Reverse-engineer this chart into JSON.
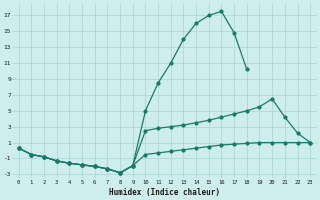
{
  "xlabel": "Humidex (Indice chaleur)",
  "bg_color": "#ceeeed",
  "grid_color": "#aad4d4",
  "line_color": "#1a7a6a",
  "x_values": [
    0,
    1,
    2,
    3,
    4,
    5,
    6,
    7,
    8,
    9,
    10,
    11,
    12,
    13,
    14,
    15,
    16,
    17,
    18,
    19,
    20,
    21,
    22,
    23
  ],
  "line1_y": [
    0.3,
    -0.5,
    -0.8,
    -1.3,
    -1.6,
    -1.8,
    -2.0,
    -2.3,
    -2.8,
    -1.9,
    -0.5,
    -0.3,
    -0.1,
    0.1,
    0.3,
    0.5,
    0.7,
    0.8,
    0.9,
    1.0,
    1.0,
    1.0,
    1.0,
    1.0
  ],
  "line2_x": [
    0,
    1,
    2,
    3,
    4,
    5,
    6,
    7,
    8,
    9,
    10,
    11,
    12,
    13,
    14,
    15,
    16,
    17,
    18
  ],
  "line2_y": [
    0.3,
    -0.5,
    -0.8,
    -1.3,
    -1.6,
    -1.8,
    -2.0,
    -2.3,
    -2.8,
    -1.9,
    5.0,
    8.5,
    11.0,
    14.0,
    16.0,
    17.0,
    17.5,
    14.8,
    10.2
  ],
  "line3_x": [
    0,
    1,
    2,
    3,
    4,
    5,
    6,
    7,
    8,
    9,
    10,
    11,
    12,
    13,
    14,
    15,
    16,
    17,
    18,
    19,
    20,
    21,
    22,
    23
  ],
  "line3_y": [
    0.3,
    -0.5,
    -0.8,
    -1.3,
    -1.6,
    -1.8,
    -2.0,
    -2.3,
    -2.8,
    -1.9,
    2.5,
    2.8,
    3.0,
    3.2,
    3.5,
    3.8,
    4.2,
    4.6,
    5.0,
    5.5,
    6.5,
    4.2,
    2.2,
    1.0
  ],
  "ylim": [
    -3.5,
    18.5
  ],
  "xlim": [
    -0.5,
    23.5
  ],
  "yticks": [
    -3,
    -1,
    1,
    3,
    5,
    7,
    9,
    11,
    13,
    15,
    17
  ],
  "xticks": [
    0,
    1,
    2,
    3,
    4,
    5,
    6,
    7,
    8,
    9,
    10,
    11,
    12,
    13,
    14,
    15,
    16,
    17,
    18,
    19,
    20,
    21,
    22,
    23
  ]
}
